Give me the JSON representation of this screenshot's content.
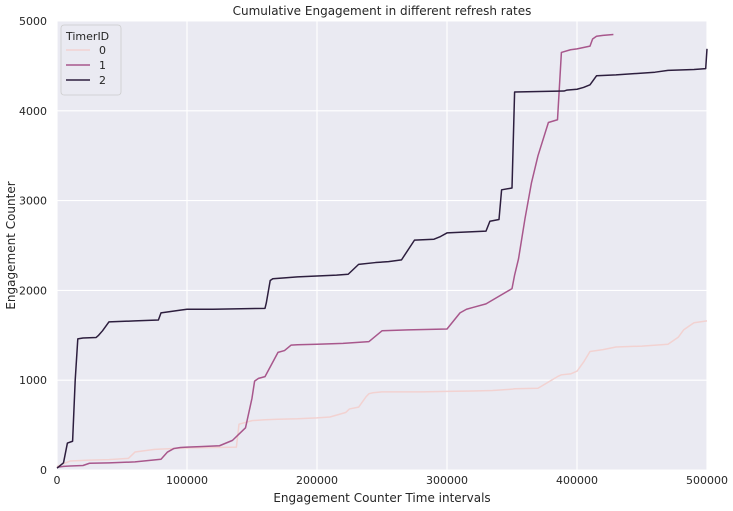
{
  "chart_data": {
    "type": "line",
    "title": "Cumulative Engagement in different refresh rates",
    "xlabel": "Engagement Counter Time intervals",
    "ylabel": "Engagement Counter",
    "xlim": [
      0,
      500000
    ],
    "ylim": [
      0,
      5000
    ],
    "xticks": [
      0,
      100000,
      200000,
      300000,
      400000,
      500000
    ],
    "xtick_labels": [
      "0",
      "100000",
      "200000",
      "300000",
      "400000",
      "500000"
    ],
    "yticks": [
      0,
      1000,
      2000,
      3000,
      4000,
      5000
    ],
    "ytick_labels": [
      "0",
      "1000",
      "2000",
      "3000",
      "4000",
      "5000"
    ],
    "grid": true,
    "legend": {
      "title": "TimerID",
      "position": "top-left"
    },
    "colors": {
      "background": "#eaeaf2",
      "grid": "#ffffff"
    },
    "series": [
      {
        "name": "0",
        "color": "#f2d2d1",
        "x": [
          0,
          10000,
          25000,
          40000,
          55000,
          60000,
          75000,
          90000,
          100000,
          120000,
          138000,
          140000,
          150000,
          160000,
          170000,
          185000,
          200000,
          210000,
          222000,
          225000,
          232000,
          238000,
          240000,
          243000,
          250000,
          280000,
          300000,
          320000,
          335000,
          350000,
          352000,
          370000,
          385000,
          388000,
          395000,
          400000,
          405000,
          410000,
          420000,
          430000,
          450000,
          470000,
          478000,
          482000,
          487000,
          490000,
          500000
        ],
        "y": [
          40,
          100,
          110,
          115,
          130,
          200,
          230,
          240,
          245,
          250,
          255,
          510,
          550,
          560,
          565,
          570,
          580,
          590,
          640,
          680,
          700,
          820,
          850,
          860,
          870,
          870,
          875,
          880,
          885,
          900,
          905,
          910,
          1040,
          1060,
          1070,
          1100,
          1200,
          1320,
          1340,
          1370,
          1380,
          1400,
          1480,
          1560,
          1610,
          1640,
          1660
        ]
      },
      {
        "name": "1",
        "color": "#a8578c",
        "x": [
          0,
          5000,
          10000,
          20000,
          25000,
          40000,
          60000,
          80000,
          85000,
          90000,
          95000,
          100000,
          110000,
          125000,
          135000,
          140000,
          145000,
          150000,
          152000,
          155000,
          160000,
          170000,
          175000,
          180000,
          185000,
          200000,
          220000,
          230000,
          240000,
          250000,
          270000,
          300000,
          310000,
          315000,
          320000,
          330000,
          350000,
          352000,
          355000,
          360000,
          365000,
          370000,
          378000,
          385000,
          388000,
          395000,
          400000,
          410000,
          412000,
          415000,
          420000,
          428000
        ],
        "y": [
          30,
          40,
          45,
          50,
          75,
          80,
          90,
          120,
          200,
          240,
          250,
          255,
          260,
          270,
          330,
          400,
          470,
          800,
          990,
          1020,
          1040,
          1310,
          1330,
          1390,
          1395,
          1400,
          1410,
          1420,
          1430,
          1550,
          1560,
          1570,
          1750,
          1790,
          1810,
          1850,
          2020,
          2170,
          2350,
          2800,
          3200,
          3500,
          3870,
          3900,
          4650,
          4680,
          4690,
          4720,
          4800,
          4830,
          4840,
          4850
        ]
      },
      {
        "name": "2",
        "color": "#2d1e3e",
        "x": [
          0,
          5000,
          8000,
          12000,
          14000,
          16000,
          20000,
          30000,
          32000,
          35000,
          40000,
          60000,
          78000,
          80000,
          95000,
          100000,
          120000,
          160000,
          161000,
          164000,
          166000,
          175000,
          185000,
          200000,
          215000,
          224000,
          232000,
          245000,
          255000,
          265000,
          275000,
          290000,
          295000,
          300000,
          315000,
          330000,
          333000,
          340000,
          342000,
          350000,
          352000,
          390000,
          392000,
          400000,
          405000,
          410000,
          415000,
          430000,
          460000,
          470000,
          490000,
          499000,
          500000
        ],
        "y": [
          20,
          80,
          300,
          320,
          1000,
          1460,
          1470,
          1475,
          1500,
          1550,
          1650,
          1660,
          1670,
          1750,
          1780,
          1790,
          1790,
          1800,
          1860,
          2110,
          2130,
          2140,
          2150,
          2160,
          2170,
          2180,
          2290,
          2310,
          2320,
          2340,
          2560,
          2570,
          2600,
          2640,
          2650,
          2660,
          2770,
          2790,
          3120,
          3140,
          4210,
          4220,
          4230,
          4240,
          4260,
          4290,
          4390,
          4400,
          4430,
          4450,
          4460,
          4470,
          4690
        ]
      }
    ]
  }
}
